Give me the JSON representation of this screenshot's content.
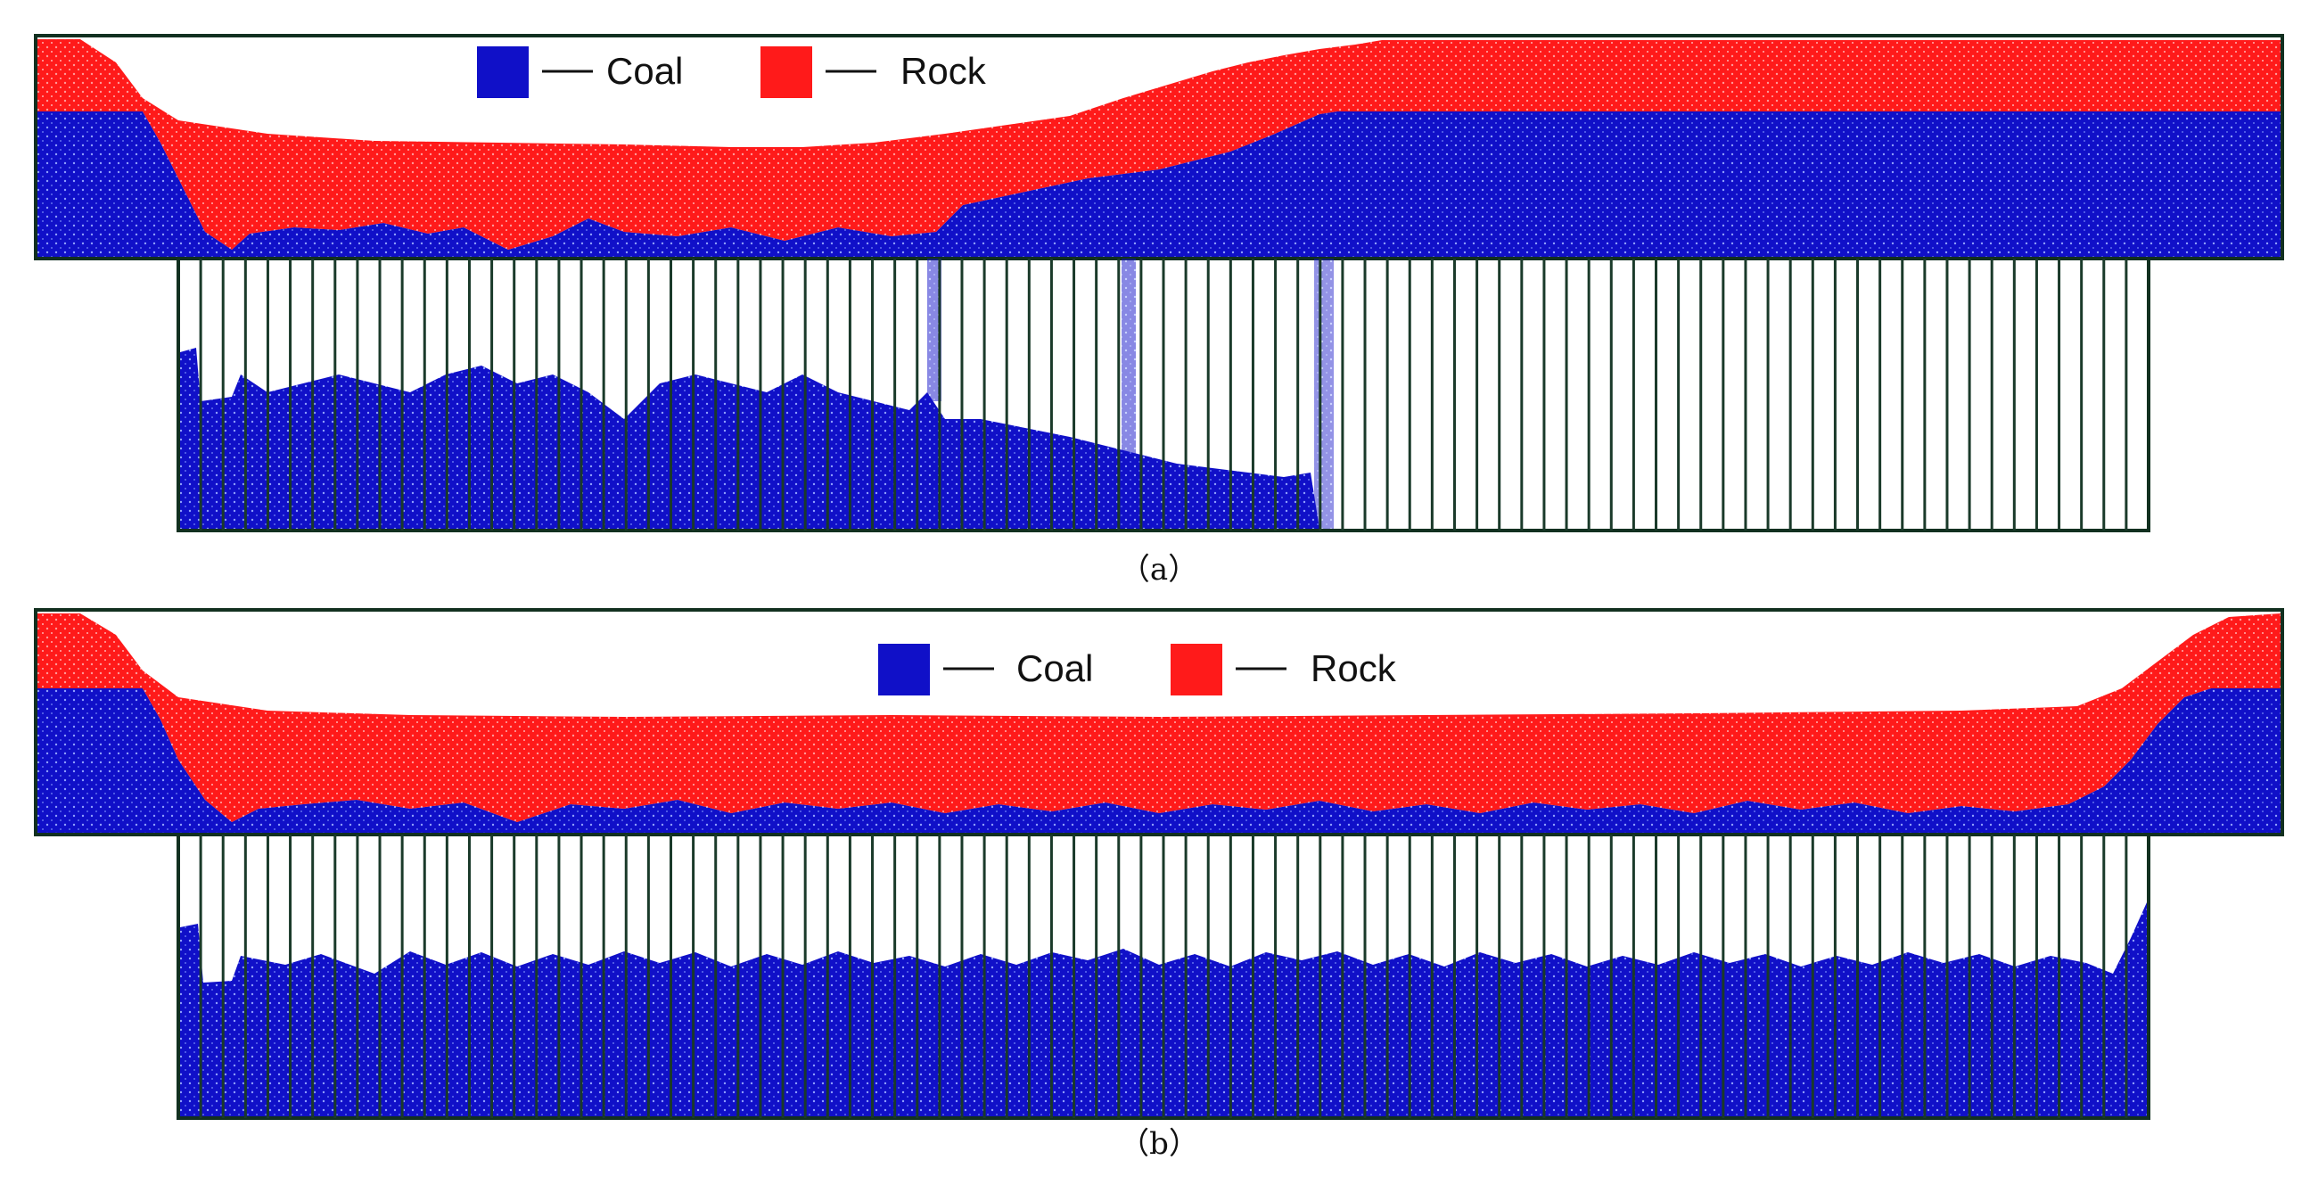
{
  "legend": {
    "coal_label": "Coal",
    "rock_label": "Rock",
    "coal_color": "#1010c8",
    "rock_color": "#ff1a1a"
  },
  "colors": {
    "frame": "#123020",
    "chute": "#1a3a2a"
  },
  "panels": [
    {
      "id": "a",
      "caption": "（a）"
    },
    {
      "id": "b",
      "caption": "（b）"
    }
  ]
}
